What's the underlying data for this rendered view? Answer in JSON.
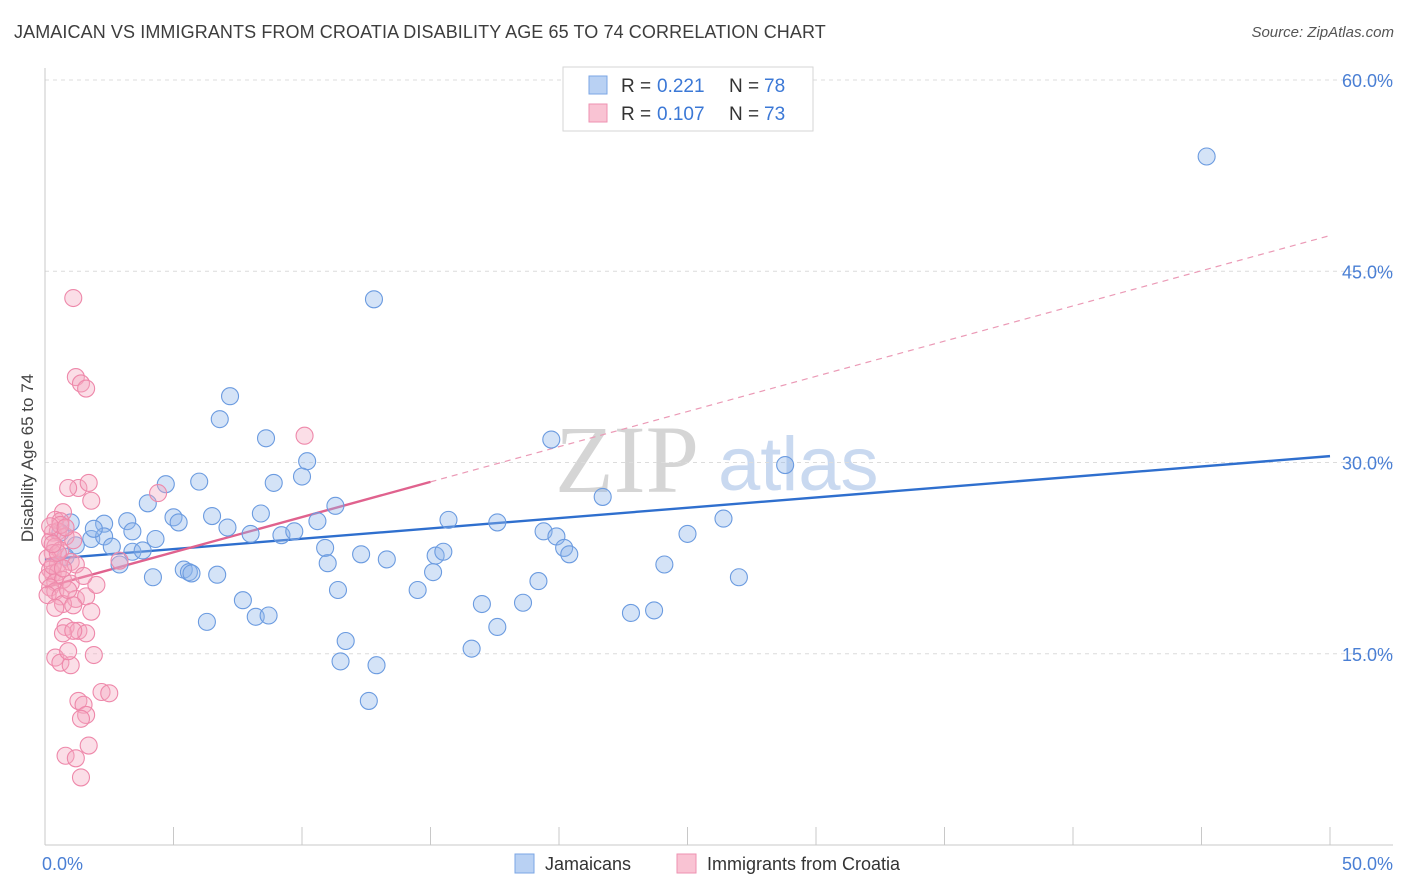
{
  "title": "JAMAICAN VS IMMIGRANTS FROM CROATIA DISABILITY AGE 65 TO 74 CORRELATION CHART",
  "source": "Source: ZipAtlas.com",
  "watermark": {
    "zip": "ZIP",
    "atlas": "atlas"
  },
  "colors": {
    "blue": "#8fb6ea",
    "blue_stroke": "#6b9be0",
    "blue_line": "#2f6fce",
    "pink": "#f4a8c0",
    "pink_stroke": "#ee88aa",
    "pink_line": "#e0628e",
    "grid": "#d9d9d9",
    "axis_label": "#4a7fd4"
  },
  "legend": {
    "rows": [
      {
        "r_label": "R = ",
        "r_value": "0.221",
        "n_label": "N = ",
        "n_value": "78",
        "color": "#8fb6ea"
      },
      {
        "r_label": "R = ",
        "r_value": "0.107",
        "n_label": "N = ",
        "n_value": "73",
        "color": "#f4a8c0"
      }
    ]
  },
  "bottom_legend": [
    {
      "label": "Jamaicans",
      "color": "#8fb6ea"
    },
    {
      "label": "Immigrants from Croatia",
      "color": "#f4a8c0"
    }
  ],
  "chart_data": {
    "type": "scatter",
    "title": "JAMAICAN VS IMMIGRANTS FROM CROATIA DISABILITY AGE 65 TO 74 CORRELATION CHART",
    "xlabel": "",
    "ylabel": "Disability Age 65 to 74",
    "xlim": [
      0,
      50
    ],
    "ylim": [
      0,
      60
    ],
    "x_tick_labels": [
      "0.0%",
      "50.0%"
    ],
    "y_ticks": [
      15,
      30,
      45,
      60
    ],
    "y_tick_labels": [
      "15.0%",
      "30.0%",
      "45.0%",
      "60.0%"
    ],
    "grid": true,
    "legend_position": "top-center",
    "series": [
      {
        "name": "Jamaicans",
        "color": "#8fb6ea",
        "trend": {
          "x": [
            0,
            50
          ],
          "y": [
            22.4,
            30.5
          ],
          "style": "solid"
        },
        "points": [
          [
            45.2,
            54.0
          ],
          [
            12.8,
            42.8
          ],
          [
            7.2,
            35.2
          ],
          [
            6.8,
            33.4
          ],
          [
            8.6,
            31.9
          ],
          [
            19.7,
            31.8
          ],
          [
            10.2,
            30.1
          ],
          [
            28.8,
            29.8
          ],
          [
            10.0,
            28.9
          ],
          [
            4.7,
            28.3
          ],
          [
            6.0,
            28.5
          ],
          [
            8.9,
            28.4
          ],
          [
            21.7,
            27.3
          ],
          [
            4.0,
            26.8
          ],
          [
            11.3,
            26.6
          ],
          [
            5.0,
            25.7
          ],
          [
            6.5,
            25.8
          ],
          [
            8.4,
            26.0
          ],
          [
            1.0,
            25.3
          ],
          [
            2.3,
            25.2
          ],
          [
            3.2,
            25.4
          ],
          [
            5.2,
            25.3
          ],
          [
            10.6,
            25.4
          ],
          [
            15.7,
            25.5
          ],
          [
            17.6,
            25.3
          ],
          [
            26.4,
            25.6
          ],
          [
            0.6,
            24.5
          ],
          [
            1.8,
            24.0
          ],
          [
            2.3,
            24.2
          ],
          [
            3.4,
            24.6
          ],
          [
            4.3,
            24.0
          ],
          [
            7.1,
            24.9
          ],
          [
            8.0,
            24.4
          ],
          [
            9.2,
            24.3
          ],
          [
            9.7,
            24.6
          ],
          [
            19.4,
            24.6
          ],
          [
            19.9,
            24.2
          ],
          [
            1.2,
            23.5
          ],
          [
            3.4,
            23.0
          ],
          [
            3.8,
            23.1
          ],
          [
            10.9,
            23.3
          ],
          [
            15.2,
            22.7
          ],
          [
            15.5,
            23.0
          ],
          [
            20.2,
            23.3
          ],
          [
            20.4,
            22.8
          ],
          [
            12.3,
            22.8
          ],
          [
            11.0,
            22.1
          ],
          [
            0.8,
            22.6
          ],
          [
            24.1,
            22.0
          ],
          [
            2.9,
            22.0
          ],
          [
            6.7,
            21.2
          ],
          [
            5.4,
            21.6
          ],
          [
            5.6,
            21.4
          ],
          [
            5.7,
            21.3
          ],
          [
            15.1,
            21.4
          ],
          [
            4.2,
            21.0
          ],
          [
            19.2,
            20.7
          ],
          [
            11.4,
            20.0
          ],
          [
            14.5,
            20.0
          ],
          [
            7.7,
            19.2
          ],
          [
            17.0,
            18.9
          ],
          [
            22.8,
            18.2
          ],
          [
            23.7,
            18.4
          ],
          [
            8.2,
            17.9
          ],
          [
            8.7,
            18.0
          ],
          [
            6.3,
            17.5
          ],
          [
            17.6,
            17.1
          ],
          [
            11.7,
            16.0
          ],
          [
            16.6,
            15.4
          ],
          [
            11.5,
            14.4
          ],
          [
            12.9,
            14.1
          ],
          [
            12.6,
            11.3
          ],
          [
            1.9,
            24.8
          ],
          [
            2.6,
            23.4
          ],
          [
            18.6,
            19.0
          ],
          [
            25.0,
            24.4
          ],
          [
            13.3,
            22.4
          ],
          [
            27.0,
            21.0
          ]
        ]
      },
      {
        "name": "Immigrants from Croatia",
        "color": "#f4a8c0",
        "trend": {
          "x": [
            0,
            50
          ],
          "y": [
            20.2,
            47.8
          ],
          "solid_until": 15.0,
          "style": "solid-then-dashed"
        },
        "points": [
          [
            1.1,
            42.9
          ],
          [
            1.2,
            36.7
          ],
          [
            1.4,
            36.2
          ],
          [
            1.6,
            35.8
          ],
          [
            10.1,
            32.1
          ],
          [
            4.4,
            27.6
          ],
          [
            1.3,
            28.0
          ],
          [
            1.7,
            28.4
          ],
          [
            0.9,
            28.0
          ],
          [
            0.7,
            26.1
          ],
          [
            0.4,
            25.5
          ],
          [
            0.6,
            25.4
          ],
          [
            0.3,
            24.5
          ],
          [
            0.5,
            24.6
          ],
          [
            0.8,
            24.2
          ],
          [
            0.2,
            23.8
          ],
          [
            0.4,
            23.4
          ],
          [
            0.6,
            23.1
          ],
          [
            0.3,
            22.9
          ],
          [
            0.1,
            22.5
          ],
          [
            0.5,
            22.0
          ],
          [
            1.0,
            22.2
          ],
          [
            1.2,
            22.0
          ],
          [
            0.2,
            21.6
          ],
          [
            0.3,
            21.3
          ],
          [
            0.5,
            21.4
          ],
          [
            0.1,
            21.0
          ],
          [
            0.4,
            20.6
          ],
          [
            0.7,
            20.8
          ],
          [
            1.0,
            20.5
          ],
          [
            0.2,
            20.2
          ],
          [
            0.4,
            19.9
          ],
          [
            0.1,
            19.6
          ],
          [
            0.6,
            19.5
          ],
          [
            1.2,
            19.3
          ],
          [
            1.6,
            19.5
          ],
          [
            0.7,
            18.9
          ],
          [
            1.1,
            18.8
          ],
          [
            1.8,
            18.3
          ],
          [
            2.0,
            20.4
          ],
          [
            0.4,
            18.6
          ],
          [
            0.8,
            17.1
          ],
          [
            1.3,
            16.8
          ],
          [
            1.6,
            16.6
          ],
          [
            0.7,
            16.6
          ],
          [
            1.1,
            16.8
          ],
          [
            1.9,
            14.9
          ],
          [
            0.4,
            14.7
          ],
          [
            0.6,
            14.3
          ],
          [
            1.0,
            14.1
          ],
          [
            1.3,
            11.3
          ],
          [
            1.5,
            11.0
          ],
          [
            2.2,
            12.0
          ],
          [
            2.5,
            11.9
          ],
          [
            1.6,
            10.2
          ],
          [
            1.4,
            9.9
          ],
          [
            1.7,
            7.8
          ],
          [
            0.8,
            7.0
          ],
          [
            1.2,
            6.8
          ],
          [
            1.4,
            5.3
          ],
          [
            0.9,
            15.2
          ],
          [
            0.6,
            25.1
          ],
          [
            0.2,
            25.0
          ],
          [
            1.8,
            27.0
          ],
          [
            2.9,
            22.3
          ],
          [
            0.3,
            21.9
          ],
          [
            0.5,
            22.9
          ],
          [
            1.5,
            21.1
          ],
          [
            0.9,
            20.0
          ],
          [
            1.1,
            23.9
          ],
          [
            0.7,
            21.7
          ],
          [
            0.3,
            23.6
          ],
          [
            0.8,
            24.9
          ]
        ]
      }
    ]
  }
}
